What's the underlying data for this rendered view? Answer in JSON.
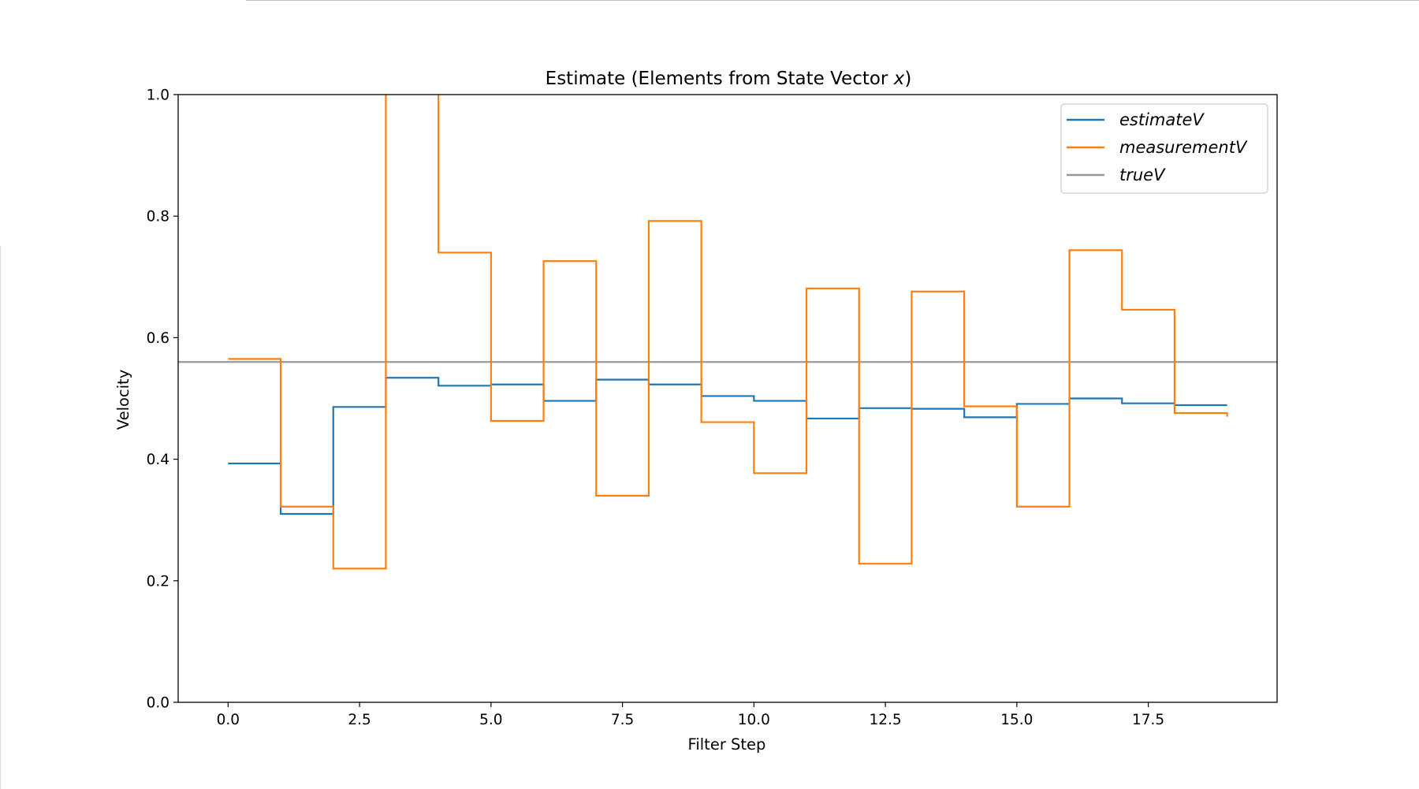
{
  "chart_data": {
    "type": "line",
    "step": "post",
    "title": "Estimate (Elements from State Vector x)",
    "title_prefix": "Estimate (Elements from State Vector ",
    "title_var": "x",
    "title_suffix": ")",
    "xlabel": "Filter Step",
    "ylabel": "Velocity",
    "xlim": [
      -0.95,
      19.95
    ],
    "ylim": [
      0.0,
      1.0
    ],
    "xticks": [
      0.0,
      2.5,
      5.0,
      7.5,
      10.0,
      12.5,
      15.0,
      17.5
    ],
    "xtick_labels": [
      "0.0",
      "2.5",
      "5.0",
      "7.5",
      "10.0",
      "12.5",
      "15.0",
      "17.5"
    ],
    "yticks": [
      0.0,
      0.2,
      0.4,
      0.6,
      0.8,
      1.0
    ],
    "ytick_labels": [
      "0.0",
      "0.2",
      "0.4",
      "0.6",
      "0.8",
      "1.0"
    ],
    "grid": false,
    "legend_position": "top-right",
    "x": [
      0,
      1,
      2,
      3,
      4,
      5,
      6,
      7,
      8,
      9,
      10,
      11,
      12,
      13,
      14,
      15,
      16,
      17,
      18,
      19
    ],
    "series": [
      {
        "name": "estimateV",
        "color": "#1f77b4",
        "style": "step",
        "values": [
          0.393,
          0.31,
          0.486,
          0.534,
          0.521,
          0.523,
          0.496,
          0.531,
          0.523,
          0.504,
          0.496,
          0.467,
          0.484,
          0.483,
          0.469,
          0.491,
          0.5,
          0.492,
          0.489,
          0.489
        ]
      },
      {
        "name": "measurementV",
        "color": "#ff7f0e",
        "style": "step",
        "values": [
          0.565,
          0.322,
          0.22,
          1.15,
          0.74,
          0.463,
          0.726,
          0.34,
          0.792,
          0.461,
          0.377,
          0.681,
          0.228,
          0.676,
          0.487,
          0.322,
          0.744,
          0.646,
          0.476,
          0.47
        ]
      },
      {
        "name": "trueV",
        "color": "#999999",
        "style": "hline",
        "value": 0.56
      }
    ]
  }
}
